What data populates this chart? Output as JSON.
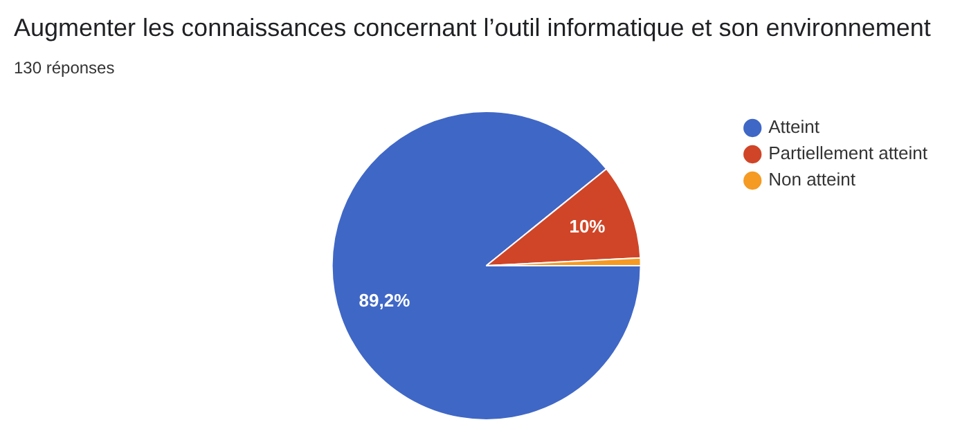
{
  "chart_data": {
    "type": "pie",
    "title": "Augmenter les connaissances concernant l’outil informatique et son environnement",
    "subtitle": "130 réponses",
    "categories": [
      "Atteint",
      "Partiellement atteint",
      "Non atteint"
    ],
    "values": [
      89.2,
      10,
      0.8
    ],
    "colors": [
      "#3f67c6",
      "#d04527",
      "#f59a23"
    ],
    "value_labels": [
      "89,2%",
      "10%",
      null
    ],
    "legend": "top right"
  }
}
